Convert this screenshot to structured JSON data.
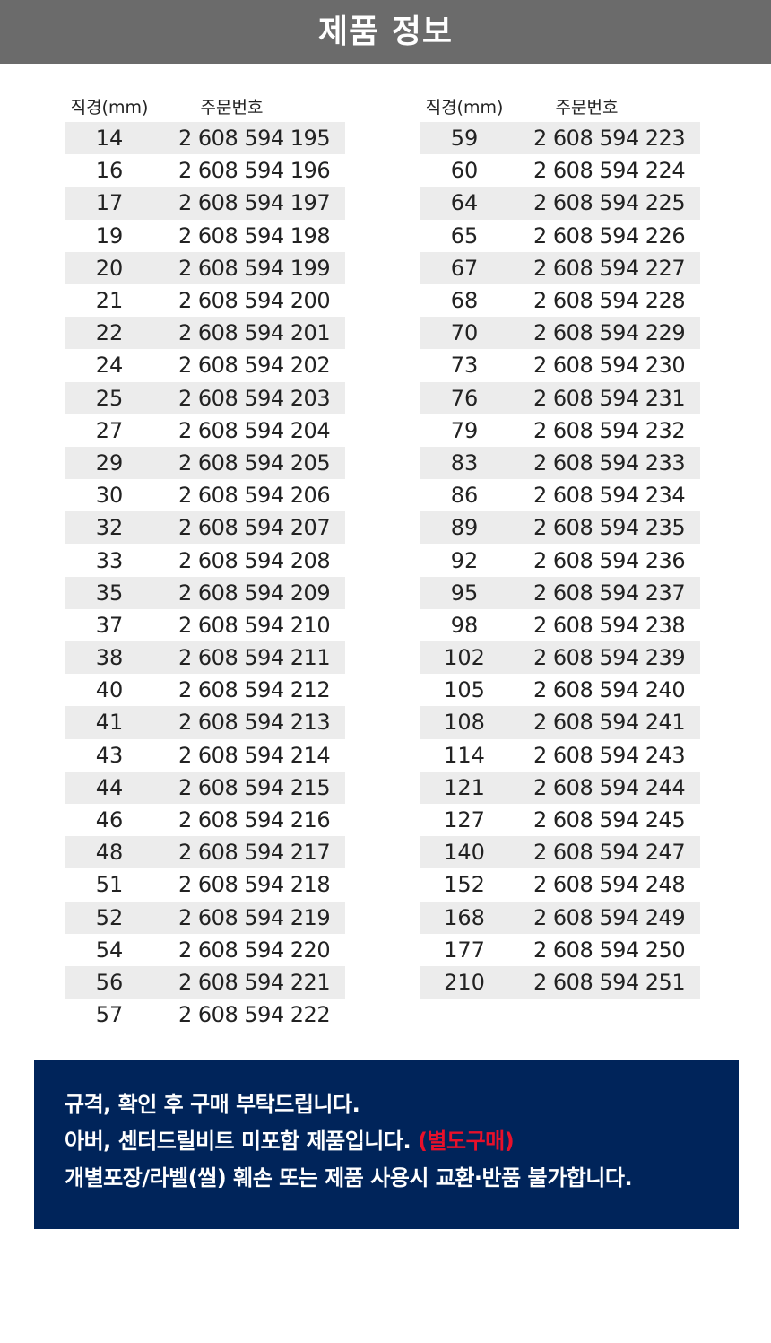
{
  "header": {
    "title": "제품 정보"
  },
  "table_headers": {
    "diameter": "직경(mm)",
    "order_no": "주문번호"
  },
  "left_rows": [
    [
      "14",
      "2 608 594 195"
    ],
    [
      "16",
      "2 608 594 196"
    ],
    [
      "17",
      "2 608 594 197"
    ],
    [
      "19",
      "2 608 594 198"
    ],
    [
      "20",
      "2 608 594 199"
    ],
    [
      "21",
      "2 608 594 200"
    ],
    [
      "22",
      "2 608 594 201"
    ],
    [
      "24",
      "2 608 594 202"
    ],
    [
      "25",
      "2 608 594 203"
    ],
    [
      "27",
      "2 608 594 204"
    ],
    [
      "29",
      "2 608 594 205"
    ],
    [
      "30",
      "2 608 594 206"
    ],
    [
      "32",
      "2 608 594 207"
    ],
    [
      "33",
      "2 608 594 208"
    ],
    [
      "35",
      "2 608 594 209"
    ],
    [
      "37",
      "2 608 594 210"
    ],
    [
      "38",
      "2 608 594 211"
    ],
    [
      "40",
      "2 608 594 212"
    ],
    [
      "41",
      "2 608 594 213"
    ],
    [
      "43",
      "2 608 594 214"
    ],
    [
      "44",
      "2 608 594 215"
    ],
    [
      "46",
      "2 608 594 216"
    ],
    [
      "48",
      "2 608 594 217"
    ],
    [
      "51",
      "2 608 594 218"
    ],
    [
      "52",
      "2 608 594 219"
    ],
    [
      "54",
      "2 608 594 220"
    ],
    [
      "56",
      "2 608 594 221"
    ],
    [
      "57",
      "2 608 594 222"
    ]
  ],
  "right_rows": [
    [
      "59",
      "2 608 594 223"
    ],
    [
      "60",
      "2 608 594 224"
    ],
    [
      "64",
      "2 608 594 225"
    ],
    [
      "65",
      "2 608 594 226"
    ],
    [
      "67",
      "2 608 594 227"
    ],
    [
      "68",
      "2 608 594 228"
    ],
    [
      "70",
      "2 608 594 229"
    ],
    [
      "73",
      "2 608 594 230"
    ],
    [
      "76",
      "2 608 594 231"
    ],
    [
      "79",
      "2 608 594 232"
    ],
    [
      "83",
      "2 608 594 233"
    ],
    [
      "86",
      "2 608 594 234"
    ],
    [
      "89",
      "2 608 594 235"
    ],
    [
      "92",
      "2 608 594 236"
    ],
    [
      "95",
      "2 608 594 237"
    ],
    [
      "98",
      "2 608 594 238"
    ],
    [
      "102",
      "2 608 594 239"
    ],
    [
      "105",
      "2 608 594 240"
    ],
    [
      "108",
      "2 608 594 241"
    ],
    [
      "114",
      "2 608 594 243"
    ],
    [
      "121",
      "2 608 594 244"
    ],
    [
      "127",
      "2 608 594 245"
    ],
    [
      "140",
      "2 608 594 247"
    ],
    [
      "152",
      "2 608 594 248"
    ],
    [
      "168",
      "2 608 594 249"
    ],
    [
      "177",
      "2 608 594 250"
    ],
    [
      "210",
      "2 608 594 251"
    ]
  ],
  "notice": {
    "line1": "규격, 확인 후 구매 부탁드립니다.",
    "line2": "아버, 센터드릴비트 미포함 제품입니다. ",
    "line2_highlight": "(별도구매)",
    "line3": "개별포장/라벨(씰) 훼손 또는 제품 사용시 교환·반품 불가합니다.",
    "highlight_color": "#e8102a",
    "background": "#00245a"
  }
}
